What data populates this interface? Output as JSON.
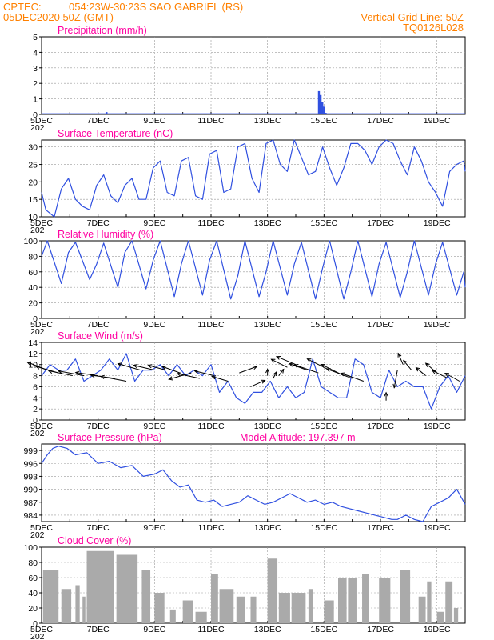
{
  "header": {
    "source": "CPTEC:",
    "location": "054:23W-30:23S  SAO GABRIEL (RS)",
    "run": "05DEC2020 50Z (GMT)",
    "grid_note": "Vertical Grid Line: 50Z",
    "code": "TQ0126L028",
    "year_stub": "202"
  },
  "colors": {
    "header": "#ff8000",
    "title": "#ff00a0",
    "series": "#3050e0",
    "cloud": "#aaaaaa",
    "arrow": "#000000"
  },
  "x_axis": {
    "ticks": [
      "5DEC",
      "7DEC",
      "9DEC",
      "11DEC",
      "13DEC",
      "15DEC",
      "17DEC",
      "19DEC"
    ],
    "range_days": [
      0,
      15
    ]
  },
  "chart_data": [
    {
      "id": "precip",
      "type": "bar",
      "title": "Precipitation (mm/h)",
      "ylim": [
        0,
        5
      ],
      "yticks": [
        "0",
        "1",
        "2",
        "3",
        "4",
        "5"
      ],
      "points": [
        [
          2.3,
          0.15
        ],
        [
          9.82,
          1.5
        ],
        [
          9.88,
          1.25
        ],
        [
          9.94,
          0.8
        ],
        [
          10.0,
          0.5
        ],
        [
          10.06,
          0.1
        ]
      ]
    },
    {
      "id": "temp",
      "type": "line",
      "title": "Surface Temperature (nC)",
      "ylim": [
        10,
        32
      ],
      "yticks": [
        "10",
        "15",
        "20",
        "25",
        "30"
      ],
      "x": [
        0,
        0.15,
        0.45,
        0.7,
        0.95,
        1.2,
        1.45,
        1.7,
        1.95,
        2.2,
        2.45,
        2.7,
        2.95,
        3.2,
        3.45,
        3.7,
        3.95,
        4.2,
        4.45,
        4.7,
        4.95,
        5.2,
        5.45,
        5.7,
        5.95,
        6.2,
        6.45,
        6.7,
        6.95,
        7.2,
        7.45,
        7.7,
        7.95,
        8.2,
        8.45,
        8.7,
        8.95,
        9.2,
        9.45,
        9.7,
        9.95,
        10.2,
        10.45,
        10.7,
        10.95,
        11.2,
        11.45,
        11.7,
        11.95,
        12.2,
        12.45,
        12.7,
        12.95,
        13.2,
        13.45,
        13.7,
        13.95,
        14.2,
        14.45,
        14.7,
        14.95,
        15
      ],
      "y": [
        17,
        12,
        10,
        18,
        21,
        15,
        13,
        12,
        19,
        22,
        16,
        14,
        19,
        21,
        15,
        15,
        24,
        26,
        17,
        16,
        26,
        27,
        16,
        15,
        28,
        29,
        17,
        18,
        30,
        31,
        21,
        17,
        31,
        32,
        25,
        23,
        32,
        27,
        22,
        23,
        30,
        24,
        19,
        24,
        31,
        31,
        29,
        25,
        30,
        32,
        31,
        26,
        22,
        30,
        26,
        20,
        17,
        13,
        23,
        25,
        26,
        23
      ]
    },
    {
      "id": "rh",
      "type": "line",
      "title": "Relative Humidity (%)",
      "ylim": [
        0,
        100
      ],
      "yticks": [
        "0",
        "20",
        "40",
        "60",
        "80",
        "100"
      ],
      "x": [
        0,
        0.2,
        0.7,
        0.95,
        1.2,
        1.7,
        1.95,
        2.2,
        2.7,
        2.95,
        3.2,
        3.7,
        3.95,
        4.2,
        4.7,
        4.95,
        5.2,
        5.7,
        5.95,
        6.2,
        6.7,
        6.95,
        7.2,
        7.7,
        7.95,
        8.2,
        8.7,
        8.95,
        9.2,
        9.7,
        9.95,
        10.2,
        10.7,
        10.95,
        11.2,
        11.7,
        11.95,
        12.2,
        12.7,
        12.95,
        13.2,
        13.7,
        13.95,
        14.2,
        14.7,
        14.95,
        15
      ],
      "y": [
        80,
        100,
        45,
        85,
        98,
        50,
        70,
        97,
        40,
        85,
        100,
        38,
        75,
        100,
        28,
        70,
        100,
        30,
        75,
        100,
        25,
        55,
        100,
        28,
        60,
        100,
        30,
        70,
        98,
        25,
        65,
        100,
        25,
        60,
        100,
        28,
        70,
        98,
        27,
        60,
        100,
        30,
        70,
        98,
        30,
        60,
        40
      ]
    },
    {
      "id": "wind",
      "type": "line",
      "title": "Surface Wind (m/s)",
      "ylim": [
        0,
        14
      ],
      "yticks": [
        "0",
        "2",
        "4",
        "6",
        "8",
        "10",
        "12",
        "14"
      ],
      "x": [
        0,
        0.3,
        0.6,
        0.9,
        1.2,
        1.5,
        1.8,
        2.1,
        2.4,
        2.7,
        3.0,
        3.3,
        3.6,
        3.9,
        4.2,
        4.5,
        4.8,
        5.1,
        5.4,
        5.7,
        6.0,
        6.3,
        6.6,
        6.9,
        7.2,
        7.5,
        7.8,
        8.1,
        8.4,
        8.7,
        9.0,
        9.3,
        9.6,
        9.9,
        10.2,
        10.5,
        10.8,
        11.1,
        11.4,
        11.7,
        12.0,
        12.3,
        12.6,
        12.9,
        13.2,
        13.5,
        13.8,
        14.1,
        14.4,
        14.7,
        15
      ],
      "y": [
        8,
        10,
        9,
        9,
        11,
        7,
        8,
        9,
        11,
        9,
        12,
        7,
        9,
        9,
        10,
        8,
        10,
        8,
        9,
        8,
        10,
        5,
        7,
        4,
        3,
        5,
        5,
        7,
        4,
        6,
        4,
        5,
        11,
        6,
        5,
        4,
        4,
        11,
        10,
        5,
        4,
        9,
        6,
        7,
        6,
        6,
        2,
        6,
        8,
        5,
        8
      ],
      "arrows": [
        [
          0.2,
          9,
          -25,
          -10
        ],
        [
          0.6,
          8.5,
          -28,
          -8
        ],
        [
          1.1,
          8,
          -30,
          -6
        ],
        [
          1.5,
          8,
          -32,
          -6
        ],
        [
          2.0,
          8,
          -28,
          -4
        ],
        [
          2.6,
          7.5,
          -30,
          -4
        ],
        [
          3.0,
          7,
          -32,
          -6
        ],
        [
          3.5,
          9,
          -28,
          -8
        ],
        [
          4.0,
          9,
          -26,
          -6
        ],
        [
          4.4,
          9,
          -22,
          -6
        ],
        [
          4.9,
          8.5,
          -22,
          -8
        ],
        [
          5.3,
          8.5,
          -28,
          8
        ],
        [
          5.6,
          7.5,
          -28,
          -6
        ],
        [
          6.1,
          8,
          -24,
          -6
        ],
        [
          6.6,
          7,
          -20,
          -6
        ],
        [
          7.0,
          8.5,
          22,
          -8
        ],
        [
          7.4,
          6,
          18,
          -8
        ],
        [
          8.0,
          8,
          0,
          -8
        ],
        [
          8.2,
          7.5,
          4,
          -8
        ],
        [
          8.4,
          8,
          6,
          -8
        ],
        [
          8.7,
          9.5,
          -20,
          -10
        ],
        [
          9.0,
          10,
          -24,
          -10
        ],
        [
          9.4,
          9,
          -22,
          -8
        ],
        [
          9.8,
          8.5,
          -30,
          -10
        ],
        [
          10.2,
          9,
          -28,
          -14
        ],
        [
          10.7,
          8,
          -28,
          -14
        ],
        [
          11.0,
          7.5,
          -32,
          -12
        ],
        [
          11.4,
          7,
          -28,
          -10
        ],
        [
          12.2,
          3.5,
          0,
          -10
        ],
        [
          12.6,
          9,
          -4,
          22
        ],
        [
          12.8,
          10,
          -6,
          -14
        ],
        [
          13.1,
          9,
          -10,
          -12
        ],
        [
          13.6,
          8,
          -12,
          -10
        ],
        [
          14.0,
          8.5,
          -14,
          -12
        ],
        [
          14.4,
          7.5,
          -20,
          -10
        ],
        [
          14.8,
          7,
          -18,
          -10
        ]
      ]
    },
    {
      "id": "pres",
      "type": "line",
      "title": "Surface Pressure (hPa)",
      "note": "Model Altitude: 197.397 m",
      "ylim": [
        982.5,
        1000.5
      ],
      "yticks": [
        "984",
        "987",
        "990",
        "993",
        "996",
        "999"
      ],
      "x": [
        0,
        0.2,
        0.4,
        0.6,
        0.9,
        1.2,
        1.6,
        2.0,
        2.4,
        2.8,
        3.2,
        3.6,
        4.0,
        4.3,
        4.6,
        4.9,
        5.2,
        5.5,
        5.8,
        6.1,
        6.4,
        6.7,
        7.0,
        7.3,
        7.6,
        7.9,
        8.2,
        8.5,
        8.8,
        9.1,
        9.4,
        9.7,
        10.0,
        10.3,
        10.6,
        10.9,
        11.2,
        11.5,
        11.8,
        12.1,
        12.4,
        12.6,
        12.9,
        13.2,
        13.5,
        13.8,
        14.1,
        14.4,
        14.7,
        15
      ],
      "y": [
        996,
        998,
        999.5,
        1000,
        999.5,
        998,
        998.5,
        996,
        996.5,
        995,
        995.5,
        993,
        993.5,
        994.5,
        992,
        990.5,
        991,
        987.5,
        987,
        987.5,
        986,
        986.5,
        987,
        988.5,
        987.5,
        986.5,
        987,
        988,
        989,
        988,
        987,
        987.5,
        986.5,
        987,
        986,
        985.5,
        985,
        984.5,
        984,
        983.5,
        983,
        983,
        984,
        983,
        982.5,
        986,
        987,
        988,
        990,
        986.5
      ]
    },
    {
      "id": "cloud",
      "type": "area",
      "title": "Cloud Cover (%)",
      "ylim": [
        0,
        100
      ],
      "yticks": [
        "0",
        "20",
        "40",
        "60",
        "80",
        "100"
      ],
      "seg": [
        [
          0.05,
          0.6,
          70
        ],
        [
          0.7,
          1.05,
          45
        ],
        [
          1.2,
          1.35,
          50
        ],
        [
          1.45,
          1.55,
          35
        ],
        [
          1.6,
          2.55,
          95
        ],
        [
          2.65,
          3.4,
          90
        ],
        [
          3.55,
          3.85,
          70
        ],
        [
          4.0,
          4.35,
          40
        ],
        [
          4.55,
          4.75,
          18
        ],
        [
          5.0,
          5.35,
          30
        ],
        [
          5.45,
          5.85,
          15
        ],
        [
          6.0,
          6.25,
          65
        ],
        [
          6.3,
          6.8,
          45
        ],
        [
          6.9,
          7.2,
          35
        ],
        [
          7.4,
          7.6,
          35
        ],
        [
          8.0,
          8.35,
          85
        ],
        [
          8.4,
          8.8,
          40
        ],
        [
          8.85,
          9.35,
          40
        ],
        [
          9.45,
          9.6,
          45
        ],
        [
          10.0,
          10.35,
          30
        ],
        [
          10.5,
          10.8,
          60
        ],
        [
          10.85,
          11.15,
          60
        ],
        [
          11.35,
          11.6,
          65
        ],
        [
          11.95,
          12.35,
          60
        ],
        [
          12.7,
          13.05,
          70
        ],
        [
          13.35,
          13.6,
          35
        ],
        [
          13.65,
          13.8,
          55
        ],
        [
          14.0,
          14.25,
          15
        ],
        [
          14.3,
          14.55,
          55
        ],
        [
          14.6,
          14.75,
          20
        ]
      ]
    }
  ]
}
